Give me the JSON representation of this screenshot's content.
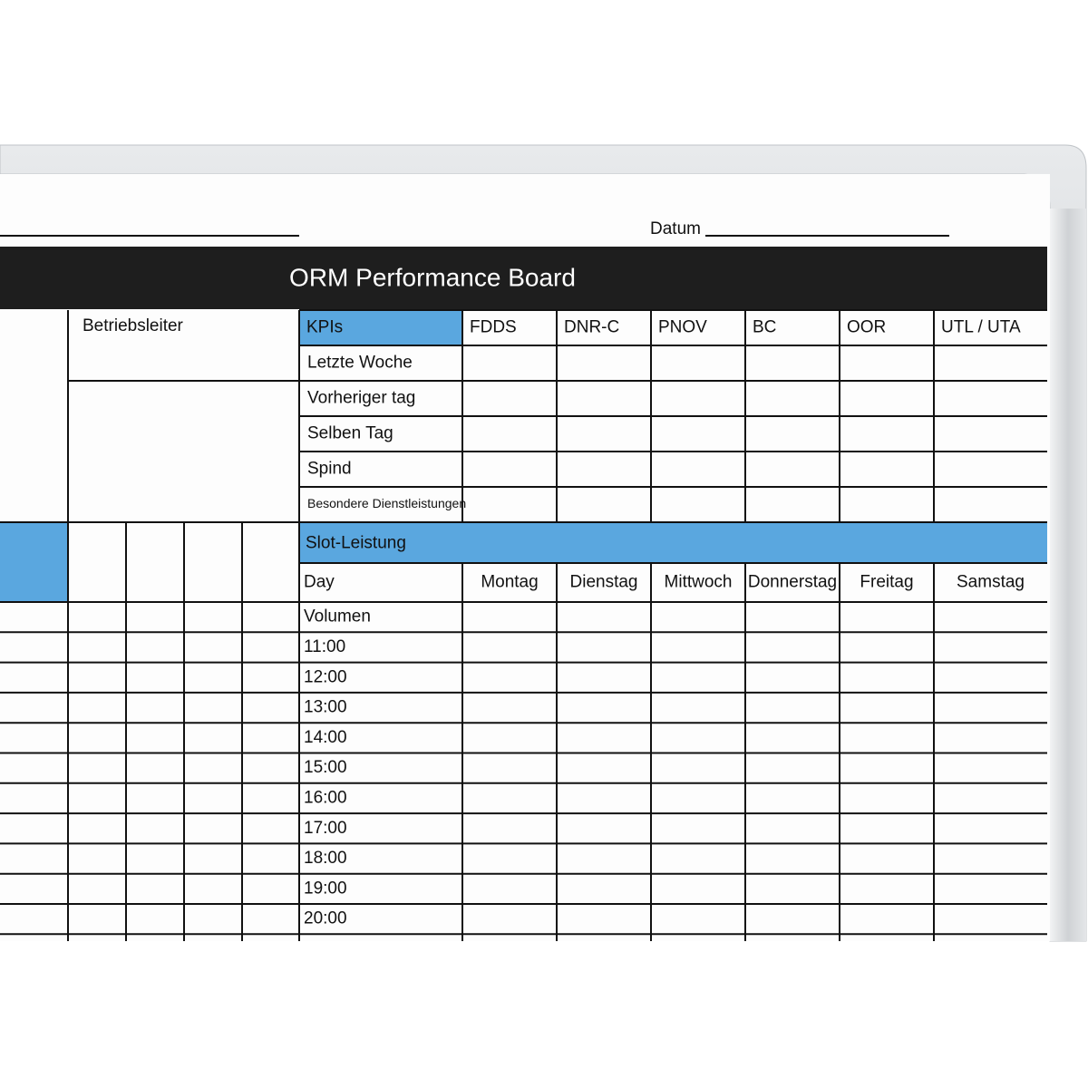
{
  "header": {
    "datum_label": "Datum",
    "title": "ORM Performance Board"
  },
  "manager": {
    "label": "Betriebsleiter"
  },
  "kpi_table": {
    "columns": [
      "KPIs",
      "FDDS",
      "DNR-C",
      "PNOV",
      "BC",
      "OOR",
      "UTL  /  UTA"
    ],
    "rows": [
      "Letzte Woche",
      "Vorheriger tag",
      "Selben Tag",
      "Spind",
      "Besondere Dienstleistungen"
    ]
  },
  "slot_table": {
    "title": "Slot-Leistung",
    "columns": [
      "Day",
      "Montag",
      "Dienstag",
      "Mittwoch",
      "Donnerstag",
      "Freitag",
      "Samstag"
    ],
    "rows": [
      "Volumen",
      "11:00",
      "12:00",
      "13:00",
      "14:00",
      "15:00",
      "16:00",
      "17:00",
      "18:00",
      "19:00",
      "20:00"
    ]
  }
}
